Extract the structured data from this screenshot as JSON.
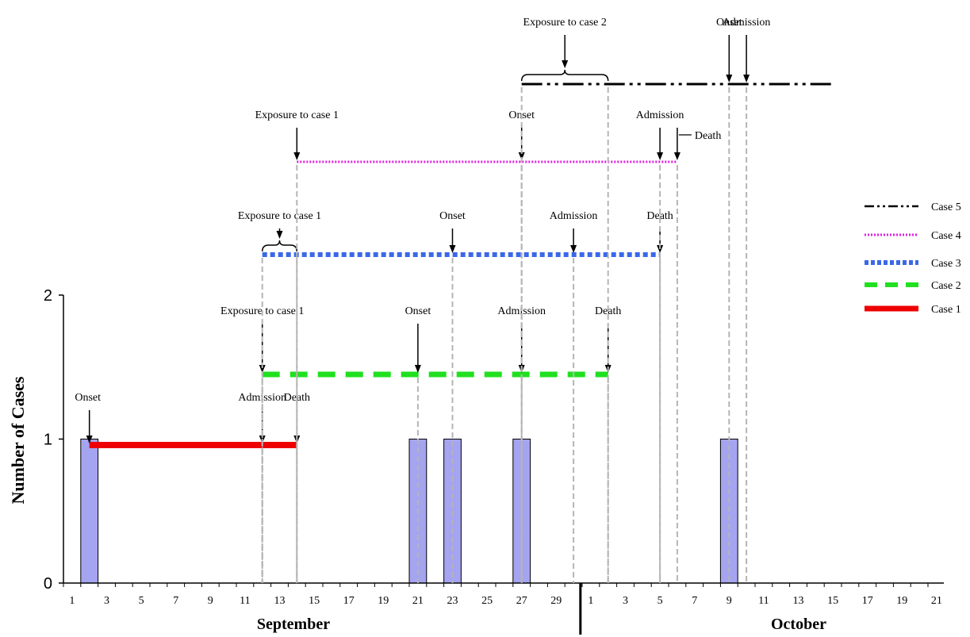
{
  "chart_data": {
    "type": "bar",
    "ylabel": "Number of Cases",
    "ylim": [
      0,
      2
    ],
    "yticks": [
      0,
      1,
      2
    ],
    "month_labels": [
      "September",
      "October"
    ],
    "xtick_labels": [
      "1",
      "3",
      "5",
      "7",
      "9",
      "11",
      "13",
      "15",
      "17",
      "19",
      "21",
      "23",
      "25",
      "27",
      "29",
      "1",
      "3",
      "5",
      "7",
      "9",
      "11",
      "13",
      "15",
      "17",
      "19",
      "21"
    ],
    "bar_color": "#a4a4f0",
    "bars": [
      {
        "date": "Sep 2",
        "value": 1
      },
      {
        "date": "Sep 21",
        "value": 1
      },
      {
        "date": "Sep 23",
        "value": 1
      },
      {
        "date": "Sep 27",
        "value": 1
      },
      {
        "date": "Oct 9",
        "value": 1
      }
    ],
    "timelines": [
      {
        "name": "Case 5",
        "color": "#000000",
        "style": "dash-dot-dot",
        "start": "Sep 27",
        "end": "Oct 15"
      },
      {
        "name": "Case 4",
        "color": "#e020e0",
        "style": "dotted",
        "start": "Sep 14",
        "end": "Oct 6"
      },
      {
        "name": "Case 3",
        "color": "#3a68e8",
        "style": "dotted-thick",
        "start": "Sep 12",
        "end": "Oct 5"
      },
      {
        "name": "Case 2",
        "color": "#20e020",
        "style": "dashed",
        "start": "Sep 12",
        "end": "Oct 2"
      },
      {
        "name": "Case 1",
        "color": "#ee0000",
        "style": "solid",
        "start": "Sep 2",
        "end": "Sep 14"
      }
    ],
    "annotations": [
      {
        "text": "Onset",
        "case": "Case 1",
        "date": "Sep 2"
      },
      {
        "text": "Admission",
        "case": "Case 1",
        "date": "Sep 12"
      },
      {
        "text": "Death",
        "case": "Case 1",
        "date": "Sep 14"
      },
      {
        "text": "Exposure to case 1",
        "case": "Case 2",
        "date": "Sep 12"
      },
      {
        "text": "Onset",
        "case": "Case 2",
        "date": "Sep 21"
      },
      {
        "text": "Admission",
        "case": "Case 2",
        "date": "Sep 27"
      },
      {
        "text": "Death",
        "case": "Case 2",
        "date": "Oct 2"
      },
      {
        "text": "Exposure to case 1",
        "case": "Case 3",
        "date": "Sep 12 – Sep 14"
      },
      {
        "text": "Onset",
        "case": "Case 3",
        "date": "Sep 23"
      },
      {
        "text": "Admission",
        "case": "Case 3",
        "date": "Sep 30"
      },
      {
        "text": "Death",
        "case": "Case 3",
        "date": "Oct 5"
      },
      {
        "text": "Exposure to case 1",
        "case": "Case 4",
        "date": "Sep 14"
      },
      {
        "text": "Onset",
        "case": "Case 4",
        "date": "Sep 27"
      },
      {
        "text": "Admission",
        "case": "Case 4",
        "date": "Oct 5"
      },
      {
        "text": "Death",
        "case": "Case 4",
        "date": "Oct 6"
      },
      {
        "text": "Exposure to case 2",
        "case": "Case 5",
        "date": "Sep 27 – Oct 2"
      },
      {
        "text": "Onset",
        "case": "Case 5",
        "date": "Oct 9"
      },
      {
        "text": "Admission",
        "case": "Case 5",
        "date": "Oct 10"
      }
    ]
  }
}
